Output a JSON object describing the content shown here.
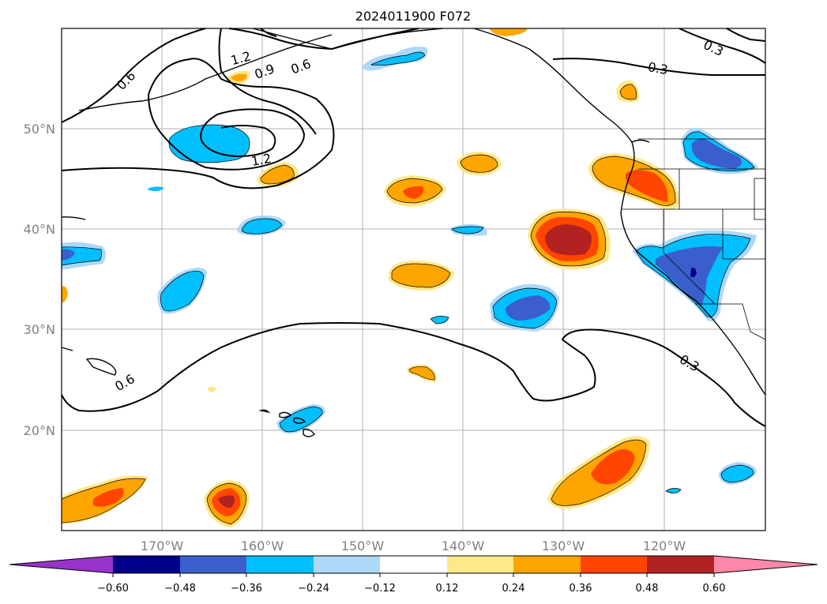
{
  "title": "2024011900 F072",
  "map": {
    "lon_ticks": [
      "170°W",
      "160°W",
      "150°W",
      "140°W",
      "130°W",
      "120°W"
    ],
    "lat_ticks": [
      "50°N",
      "40°N",
      "30°N",
      "20°N"
    ],
    "contour_labels": [
      "0.6",
      "1.2",
      "0.9",
      "0.6",
      "1.2",
      "0.3",
      "0.3",
      "0.6",
      "0.3"
    ],
    "colors": {
      "neg_extend": "#9932cc",
      "fill_m060": "#00008b",
      "fill_m048": "#3a5fcd",
      "fill_m036": "#00bfff",
      "fill_m024": "#add8f8",
      "fill_zero": "#ffffff",
      "fill_p012": "#fde88a",
      "fill_p024": "#ffa500",
      "fill_p036": "#ff4500",
      "fill_p048": "#b22222",
      "pos_extend": "#ff88aa"
    }
  },
  "colorbar": {
    "ticks": [
      "−0.60",
      "−0.48",
      "−0.36",
      "−0.24",
      "−0.12",
      "0.12",
      "0.24",
      "0.36",
      "0.48",
      "0.60"
    ]
  }
}
